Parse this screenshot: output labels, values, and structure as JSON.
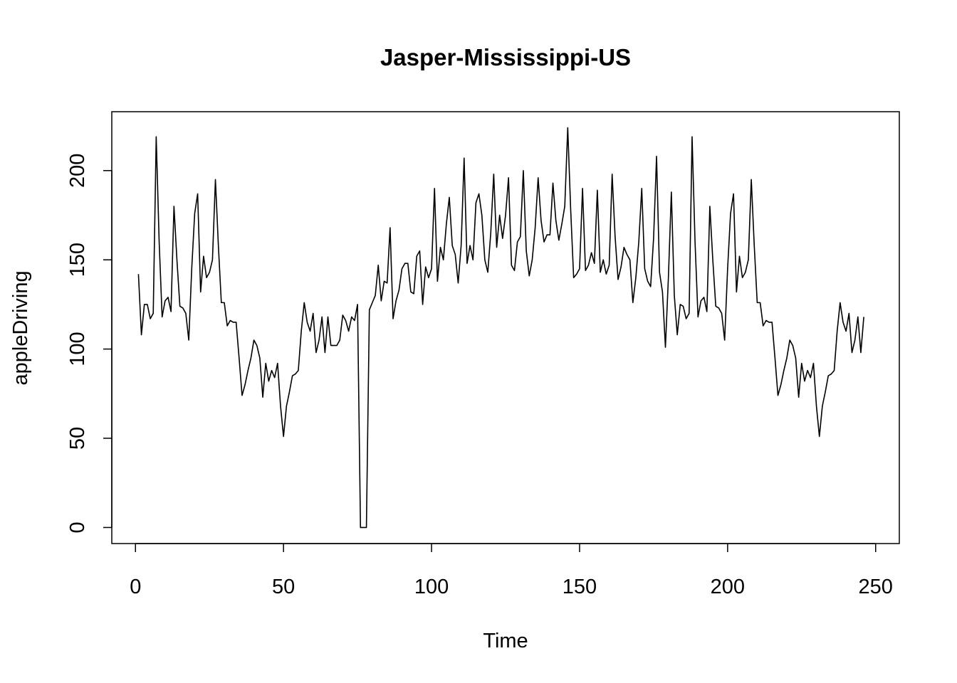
{
  "chart_data": {
    "type": "line",
    "title": "Jasper-Mississippi-US",
    "xlabel": "Time",
    "ylabel": "appleDriving",
    "xlim": [
      -8,
      258
    ],
    "ylim": [
      -9,
      233
    ],
    "xticks": [
      0,
      50,
      100,
      150,
      200,
      250
    ],
    "yticks": [
      0,
      50,
      100,
      150,
      200
    ],
    "grid": false,
    "legend": "none",
    "series": [
      {
        "x_start": 1,
        "values": [
          142,
          108,
          125,
          125,
          117,
          120,
          219,
          160,
          118,
          127,
          129,
          121,
          180,
          150,
          124,
          123,
          120,
          105,
          145,
          176,
          187,
          132,
          152,
          140,
          143,
          150,
          195,
          158,
          126,
          126,
          113,
          116,
          115,
          115,
          95,
          74,
          80,
          88,
          95,
          105,
          102,
          95,
          73,
          92,
          82,
          88,
          84,
          92,
          68,
          51,
          68,
          76,
          85,
          86,
          88,
          110,
          126,
          115,
          110,
          120,
          98,
          105,
          118,
          98,
          118,
          102,
          102,
          102,
          105,
          119,
          116,
          110,
          118,
          116,
          125,
          0,
          0,
          0,
          122,
          126,
          130,
          147,
          127,
          138,
          137,
          168,
          117,
          127,
          133,
          145,
          148,
          148,
          132,
          131,
          152,
          155,
          125,
          146,
          140,
          145,
          190,
          138,
          157,
          150,
          170,
          185,
          158,
          153,
          137,
          158,
          207,
          148,
          158,
          150,
          182,
          187,
          175,
          150,
          143,
          165,
          198,
          157,
          175,
          162,
          175,
          196,
          147,
          144,
          160,
          163,
          200,
          155,
          141,
          150,
          168,
          196,
          172,
          160,
          164,
          164,
          193,
          172,
          161,
          170,
          180,
          224,
          178,
          140,
          142,
          145,
          190,
          144,
          147,
          154,
          148,
          189,
          143,
          150,
          142,
          147,
          198,
          163,
          139,
          146,
          157,
          153,
          150,
          126,
          140,
          160,
          190,
          145,
          138,
          135,
          162,
          208,
          143,
          132,
          101,
          140,
          188,
          130,
          108,
          125,
          124,
          117,
          120,
          219,
          160,
          118,
          127,
          129,
          121,
          180,
          150,
          124,
          123,
          120,
          105,
          145,
          176,
          187,
          132,
          152,
          140,
          143,
          150,
          195,
          158,
          126,
          126,
          113,
          116,
          115,
          115,
          95,
          74,
          80,
          88,
          95,
          105,
          102,
          95,
          73,
          92,
          82,
          88,
          84,
          92,
          68,
          51,
          68,
          76,
          85,
          86,
          88,
          110,
          126,
          115,
          110,
          120,
          98,
          105,
          118,
          98,
          118
        ]
      }
    ]
  }
}
